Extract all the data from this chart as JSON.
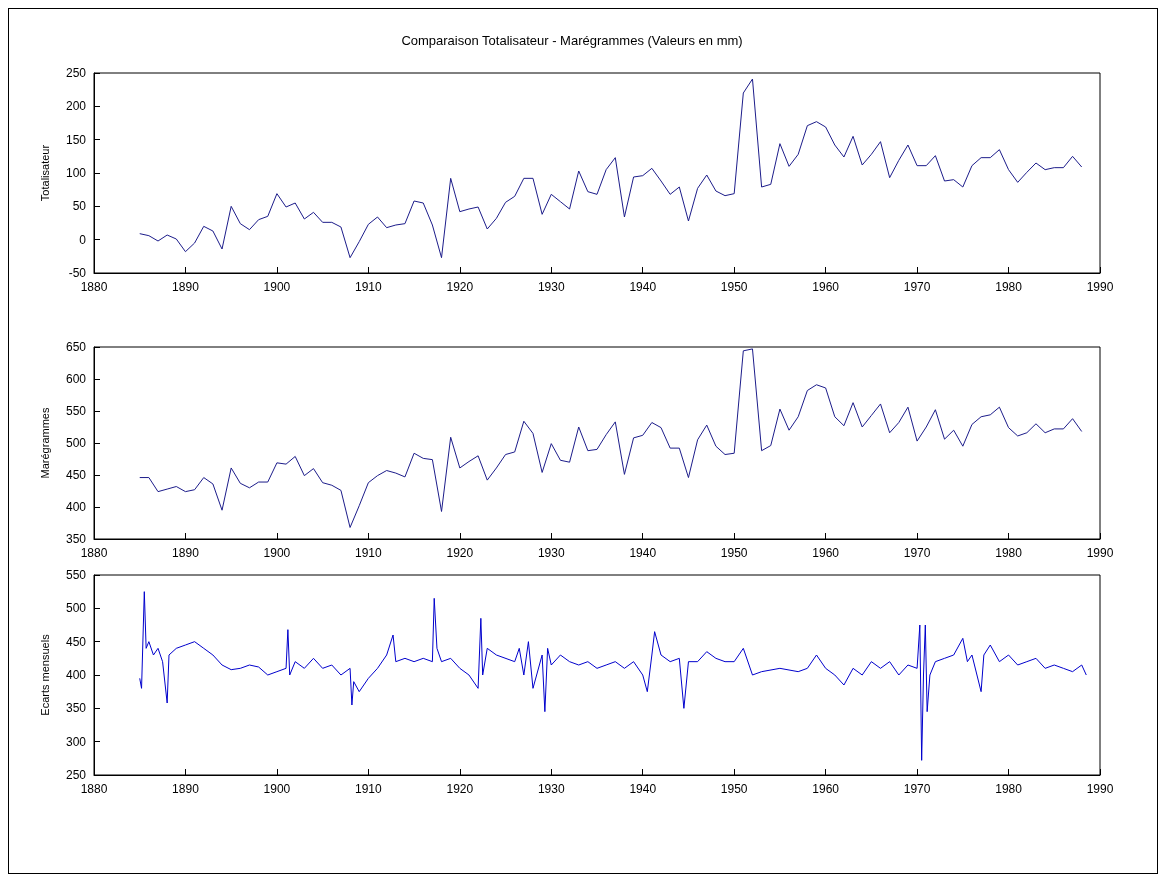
{
  "chart_data": [
    {
      "type": "line",
      "title": "Comparaison Totalisateur - Marégrammes (Valeurs en mm)",
      "ylabel": "Totalisateur",
      "xlim": [
        1880,
        1990
      ],
      "xticks": [
        1880,
        1890,
        1900,
        1910,
        1920,
        1930,
        1940,
        1950,
        1960,
        1970,
        1980,
        1990
      ],
      "ylim": [
        -50,
        250
      ],
      "yticks": [
        -50,
        0,
        50,
        100,
        150,
        200,
        250
      ],
      "x": [
        1885,
        1886,
        1887,
        1888,
        1889,
        1890,
        1891,
        1892,
        1893,
        1894,
        1895,
        1896,
        1897,
        1898,
        1899,
        1900,
        1901,
        1902,
        1903,
        1904,
        1905,
        1906,
        1907,
        1908,
        1909,
        1910,
        1911,
        1912,
        1913,
        1914,
        1915,
        1916,
        1917,
        1918,
        1919,
        1920,
        1921,
        1922,
        1923,
        1924,
        1925,
        1926,
        1927,
        1928,
        1929,
        1930,
        1931,
        1932,
        1933,
        1934,
        1935,
        1936,
        1937,
        1938,
        1939,
        1940,
        1941,
        1942,
        1943,
        1944,
        1945,
        1946,
        1947,
        1948,
        1949,
        1950,
        1951,
        1952,
        1953,
        1954,
        1955,
        1956,
        1957,
        1958,
        1959,
        1960,
        1961,
        1962,
        1963,
        1964,
        1965,
        1966,
        1967,
        1968,
        1969,
        1970,
        1971,
        1972,
        1973,
        1974,
        1975,
        1976,
        1977,
        1978,
        1979,
        1980,
        1981,
        1982,
        1983,
        1984,
        1985,
        1986,
        1987,
        1988
      ],
      "series": [
        {
          "color": "#1c1c8a",
          "values": [
            9,
            6,
            -2,
            7,
            1,
            -18,
            -5,
            20,
            13,
            -14,
            50,
            24,
            15,
            30,
            35,
            69,
            49,
            55,
            31,
            41,
            26,
            26,
            19,
            -27,
            -3,
            23,
            34,
            18,
            22,
            24,
            58,
            55,
            22,
            -27,
            92,
            42,
            46,
            49,
            16,
            32,
            56,
            65,
            92,
            92,
            38,
            68,
            57,
            46,
            103,
            72,
            68,
            105,
            123,
            34,
            94,
            96,
            107,
            88,
            68,
            79,
            28,
            77,
            97,
            73,
            66,
            69,
            220,
            241,
            79,
            83,
            144,
            110,
            128,
            171,
            177,
            169,
            142,
            124,
            155,
            112,
            128,
            147,
            93,
            119,
            142,
            111,
            111,
            126,
            88,
            90,
            79,
            111,
            123,
            123,
            135,
            105,
            86,
            101,
            115,
            105,
            108,
            108,
            125,
            109
          ]
        }
      ]
    },
    {
      "type": "line",
      "ylabel": "Marégrammes",
      "xlim": [
        1880,
        1990
      ],
      "xticks": [
        1880,
        1890,
        1900,
        1910,
        1920,
        1930,
        1940,
        1950,
        1960,
        1970,
        1980,
        1990
      ],
      "ylim": [
        350,
        650
      ],
      "yticks": [
        350,
        400,
        450,
        500,
        550,
        600,
        650
      ],
      "x": [
        1885,
        1886,
        1887,
        1888,
        1889,
        1890,
        1891,
        1892,
        1893,
        1894,
        1895,
        1896,
        1897,
        1898,
        1899,
        1900,
        1901,
        1902,
        1903,
        1904,
        1905,
        1906,
        1907,
        1908,
        1909,
        1910,
        1911,
        1912,
        1913,
        1914,
        1915,
        1916,
        1917,
        1918,
        1919,
        1920,
        1921,
        1922,
        1923,
        1924,
        1925,
        1926,
        1927,
        1928,
        1929,
        1930,
        1931,
        1932,
        1933,
        1934,
        1935,
        1936,
        1937,
        1938,
        1939,
        1940,
        1941,
        1942,
        1943,
        1944,
        1945,
        1946,
        1947,
        1948,
        1949,
        1950,
        1951,
        1952,
        1953,
        1954,
        1955,
        1956,
        1957,
        1958,
        1959,
        1960,
        1961,
        1962,
        1963,
        1964,
        1965,
        1966,
        1967,
        1968,
        1969,
        1970,
        1971,
        1972,
        1973,
        1974,
        1975,
        1976,
        1977,
        1978,
        1979,
        1980,
        1981,
        1982,
        1983,
        1984,
        1985,
        1986,
        1987,
        1988
      ],
      "series": [
        {
          "color": "#1c1c8a",
          "values": [
            446,
            446,
            424,
            428,
            432,
            424,
            427,
            446,
            436,
            395,
            461,
            437,
            430,
            439,
            439,
            469,
            467,
            479,
            449,
            460,
            438,
            434,
            426,
            368,
            402,
            438,
            449,
            457,
            453,
            447,
            484,
            476,
            474,
            393,
            509,
            461,
            471,
            480,
            442,
            461,
            482,
            486,
            534,
            515,
            454,
            499,
            473,
            470,
            525,
            488,
            490,
            513,
            533,
            451,
            508,
            512,
            532,
            524,
            492,
            492,
            446,
            505,
            528,
            495,
            482,
            484,
            644,
            647,
            488,
            496,
            553,
            520,
            541,
            582,
            591,
            586,
            541,
            527,
            563,
            525,
            543,
            561,
            516,
            532,
            556,
            503,
            525,
            552,
            506,
            520,
            495,
            529,
            541,
            544,
            556,
            524,
            511,
            516,
            530,
            516,
            522,
            522,
            538,
            518
          ]
        }
      ]
    },
    {
      "type": "line",
      "ylabel": "Ecarts mensuels",
      "xlim": [
        1880,
        1990
      ],
      "xticks": [
        1880,
        1890,
        1900,
        1910,
        1920,
        1930,
        1940,
        1950,
        1960,
        1970,
        1980,
        1990
      ],
      "ylim": [
        250,
        550
      ],
      "yticks": [
        250,
        300,
        350,
        400,
        450,
        500,
        550
      ],
      "x": [
        1885.0,
        1885.2,
        1885.5,
        1885.7,
        1886,
        1886.5,
        1887,
        1887.5,
        1888,
        1888.2,
        1889,
        1890,
        1891,
        1892,
        1893,
        1894,
        1895,
        1896,
        1897,
        1898,
        1899,
        1900,
        1901,
        1901.2,
        1901.4,
        1902,
        1903,
        1904,
        1905,
        1906,
        1907,
        1908,
        1908.2,
        1908.4,
        1909,
        1910,
        1911,
        1912,
        1912.7,
        1913,
        1914,
        1915,
        1916,
        1917,
        1917.2,
        1917.5,
        1918,
        1919,
        1920,
        1921,
        1922,
        1922.3,
        1922.5,
        1923,
        1924,
        1926,
        1926.5,
        1927,
        1927.5,
        1928,
        1929,
        1929.3,
        1929.6,
        1930,
        1931,
        1932,
        1933,
        1934,
        1935,
        1936,
        1937,
        1938,
        1939,
        1940,
        1940.5,
        1941,
        1941.3,
        1942,
        1943,
        1944,
        1944.5,
        1945,
        1946,
        1947,
        1948,
        1949,
        1950,
        1951,
        1952,
        1953,
        1955,
        1957,
        1958,
        1959,
        1960,
        1961,
        1962,
        1963,
        1964,
        1965,
        1966,
        1967,
        1968,
        1969,
        1970,
        1970.3,
        1970.5,
        1970.7,
        1970.9,
        1971.1,
        1971.4,
        1972,
        1973,
        1974,
        1975,
        1975.5,
        1976,
        1977,
        1977.3,
        1978,
        1979,
        1980,
        1981,
        1982,
        1983,
        1984,
        1985,
        1986,
        1987,
        1988,
        1988.5
      ],
      "series": [
        {
          "color": "#0000cc",
          "values": [
            395,
            380,
            525,
            440,
            450,
            430,
            440,
            420,
            358,
            430,
            440,
            445,
            450,
            440,
            430,
            415,
            408,
            410,
            415,
            412,
            400,
            405,
            410,
            468,
            400,
            420,
            410,
            425,
            410,
            415,
            400,
            410,
            355,
            390,
            375,
            395,
            410,
            430,
            460,
            420,
            425,
            420,
            425,
            420,
            515,
            440,
            420,
            425,
            410,
            400,
            380,
            485,
            400,
            440,
            430,
            420,
            440,
            400,
            450,
            380,
            430,
            345,
            440,
            415,
            430,
            420,
            415,
            420,
            410,
            415,
            420,
            410,
            420,
            400,
            375,
            430,
            465,
            430,
            420,
            425,
            350,
            420,
            420,
            435,
            425,
            420,
            420,
            440,
            400,
            405,
            410,
            405,
            410,
            430,
            410,
            400,
            385,
            410,
            400,
            420,
            410,
            420,
            400,
            415,
            410,
            475,
            272,
            400,
            475,
            345,
            400,
            420,
            425,
            430,
            455,
            420,
            430,
            375,
            430,
            445,
            420,
            430,
            415,
            420,
            425,
            410,
            415,
            410,
            405,
            415,
            400
          ]
        }
      ]
    }
  ]
}
